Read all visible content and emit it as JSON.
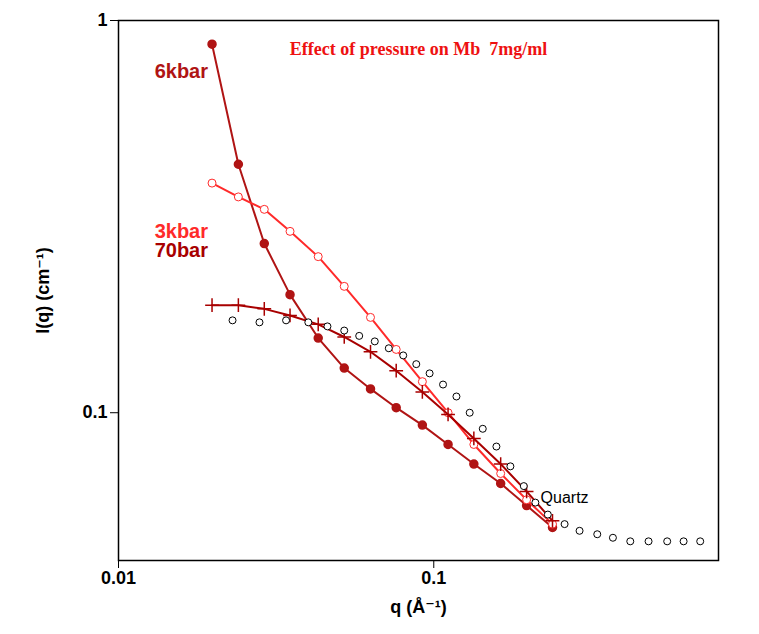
{
  "chart_data": {
    "type": "line",
    "title": "Effect of pressure on Mb  7mg/ml",
    "x_label": "q (Å⁻¹)",
    "y_label": "I(q) (cm⁻¹)",
    "log": true,
    "grid": false,
    "xlim": [
      0.01,
      0.8
    ],
    "xticks": [
      0.01,
      0.1
    ],
    "ylim": [
      0.042,
      1
    ],
    "yticks": [
      0.1,
      1
    ],
    "series": [
      {
        "name": "6kbar",
        "type": "line",
        "color": "#b01414",
        "marker": "circle",
        "line_style": "solid",
        "x": [
          0.0198,
          0.024,
          0.029,
          0.035,
          0.043,
          0.052,
          0.063,
          0.076,
          0.092,
          0.111,
          0.134,
          0.163,
          0.197,
          0.238
        ],
        "values": [
          0.87,
          0.43,
          0.27,
          0.2,
          0.155,
          0.13,
          0.115,
          0.103,
          0.093,
          0.083,
          0.074,
          0.066,
          0.058,
          0.051
        ]
      },
      {
        "name": "3kbar",
        "type": "line",
        "color": "#ff2a2a",
        "marker": "circle-open",
        "line_style": "solid",
        "x": [
          0.0198,
          0.024,
          0.029,
          0.035,
          0.043,
          0.052,
          0.063,
          0.076,
          0.092,
          0.111,
          0.134,
          0.163,
          0.197,
          0.238
        ],
        "values": [
          0.385,
          0.355,
          0.33,
          0.29,
          0.25,
          0.21,
          0.175,
          0.145,
          0.12,
          0.1,
          0.083,
          0.07,
          0.06,
          0.052
        ]
      },
      {
        "name": "70bar",
        "type": "line",
        "color": "#a80000",
        "marker": "plus",
        "line_style": "solid",
        "x": [
          0.0198,
          0.024,
          0.029,
          0.035,
          0.043,
          0.052,
          0.063,
          0.076,
          0.092,
          0.111,
          0.134,
          0.163,
          0.197,
          0.238
        ],
        "values": [
          0.188,
          0.188,
          0.184,
          0.177,
          0.168,
          0.156,
          0.143,
          0.128,
          0.113,
          0.099,
          0.086,
          0.074,
          0.063,
          0.053
        ]
      },
      {
        "name": "Quartz",
        "type": "scatter",
        "color": "#000000",
        "marker": "circle-open",
        "x": [
          0.023,
          0.028,
          0.034,
          0.04,
          0.046,
          0.052,
          0.058,
          0.065,
          0.072,
          0.08,
          0.088,
          0.097,
          0.107,
          0.118,
          0.13,
          0.143,
          0.158,
          0.175,
          0.193,
          0.21,
          0.23,
          0.26,
          0.29,
          0.33,
          0.37,
          0.42,
          0.48,
          0.55,
          0.62,
          0.7
        ],
        "values": [
          0.172,
          0.17,
          0.172,
          0.17,
          0.166,
          0.162,
          0.157,
          0.152,
          0.146,
          0.14,
          0.133,
          0.126,
          0.118,
          0.11,
          0.1,
          0.091,
          0.082,
          0.073,
          0.065,
          0.059,
          0.055,
          0.052,
          0.05,
          0.049,
          0.048,
          0.047,
          0.047,
          0.047,
          0.047,
          0.047
        ]
      }
    ]
  }
}
